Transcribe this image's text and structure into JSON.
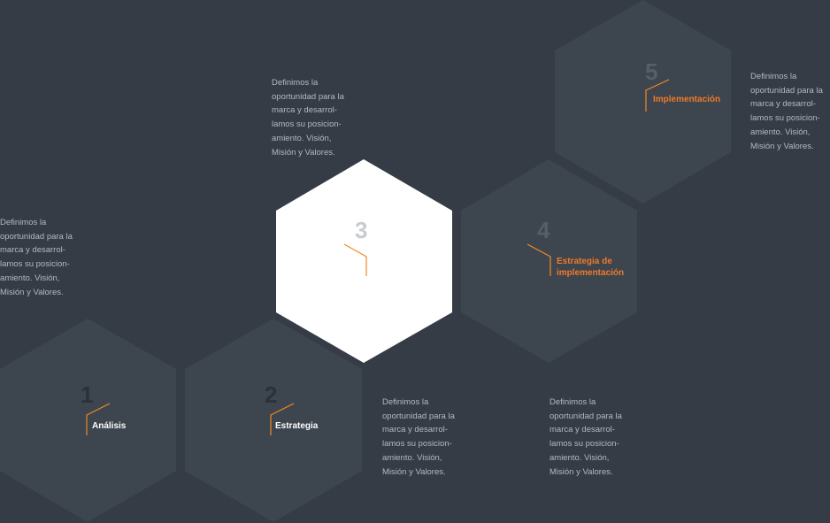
{
  "colors": {
    "background": "#353c45",
    "hexagon": "#3d454e",
    "hexagon_active": "#ffffff",
    "accent": "#f08a24",
    "number_dim": "#2b3139",
    "number_mid": "#565e68",
    "number_active": "#c8ccd1",
    "label_light": "#ffffff",
    "label_accent": "#f07a2a",
    "description": "#b3b9c0"
  },
  "steps": [
    {
      "number": "1",
      "label": "Análisis",
      "state": "default",
      "description": "Definimos la\noportunidad para la\nmarca y desarrol-\nlamos su posicion-\namiento. Visión,\nMisión y Valores."
    },
    {
      "number": "2",
      "label": "Estrategia",
      "state": "default",
      "description": "Definimos la\noportunidad para la\nmarca y desarrol-\nlamos su posicion-\namiento. Visión,\nMisión y Valores."
    },
    {
      "number": "3",
      "label": "",
      "state": "active",
      "description": "Definimos la\noportunidad para la\nmarca y desarrol-\nlamos su posicion-\namiento. Visión,\nMisión y Valores."
    },
    {
      "number": "4",
      "label": "Estrategia de implementación",
      "state": "highlight",
      "description": "Definimos la\noportunidad para la\nmarca y desarrol-\nlamos su posicion-\namiento. Visión,\nMisión y Valores."
    },
    {
      "number": "5",
      "label": "Implementación",
      "state": "highlight",
      "description": "Definimos la\noportunidad para la\nmarca y desarrol-\nlamos su posicion-\namiento. Visión,\nMisión y Valores."
    }
  ]
}
